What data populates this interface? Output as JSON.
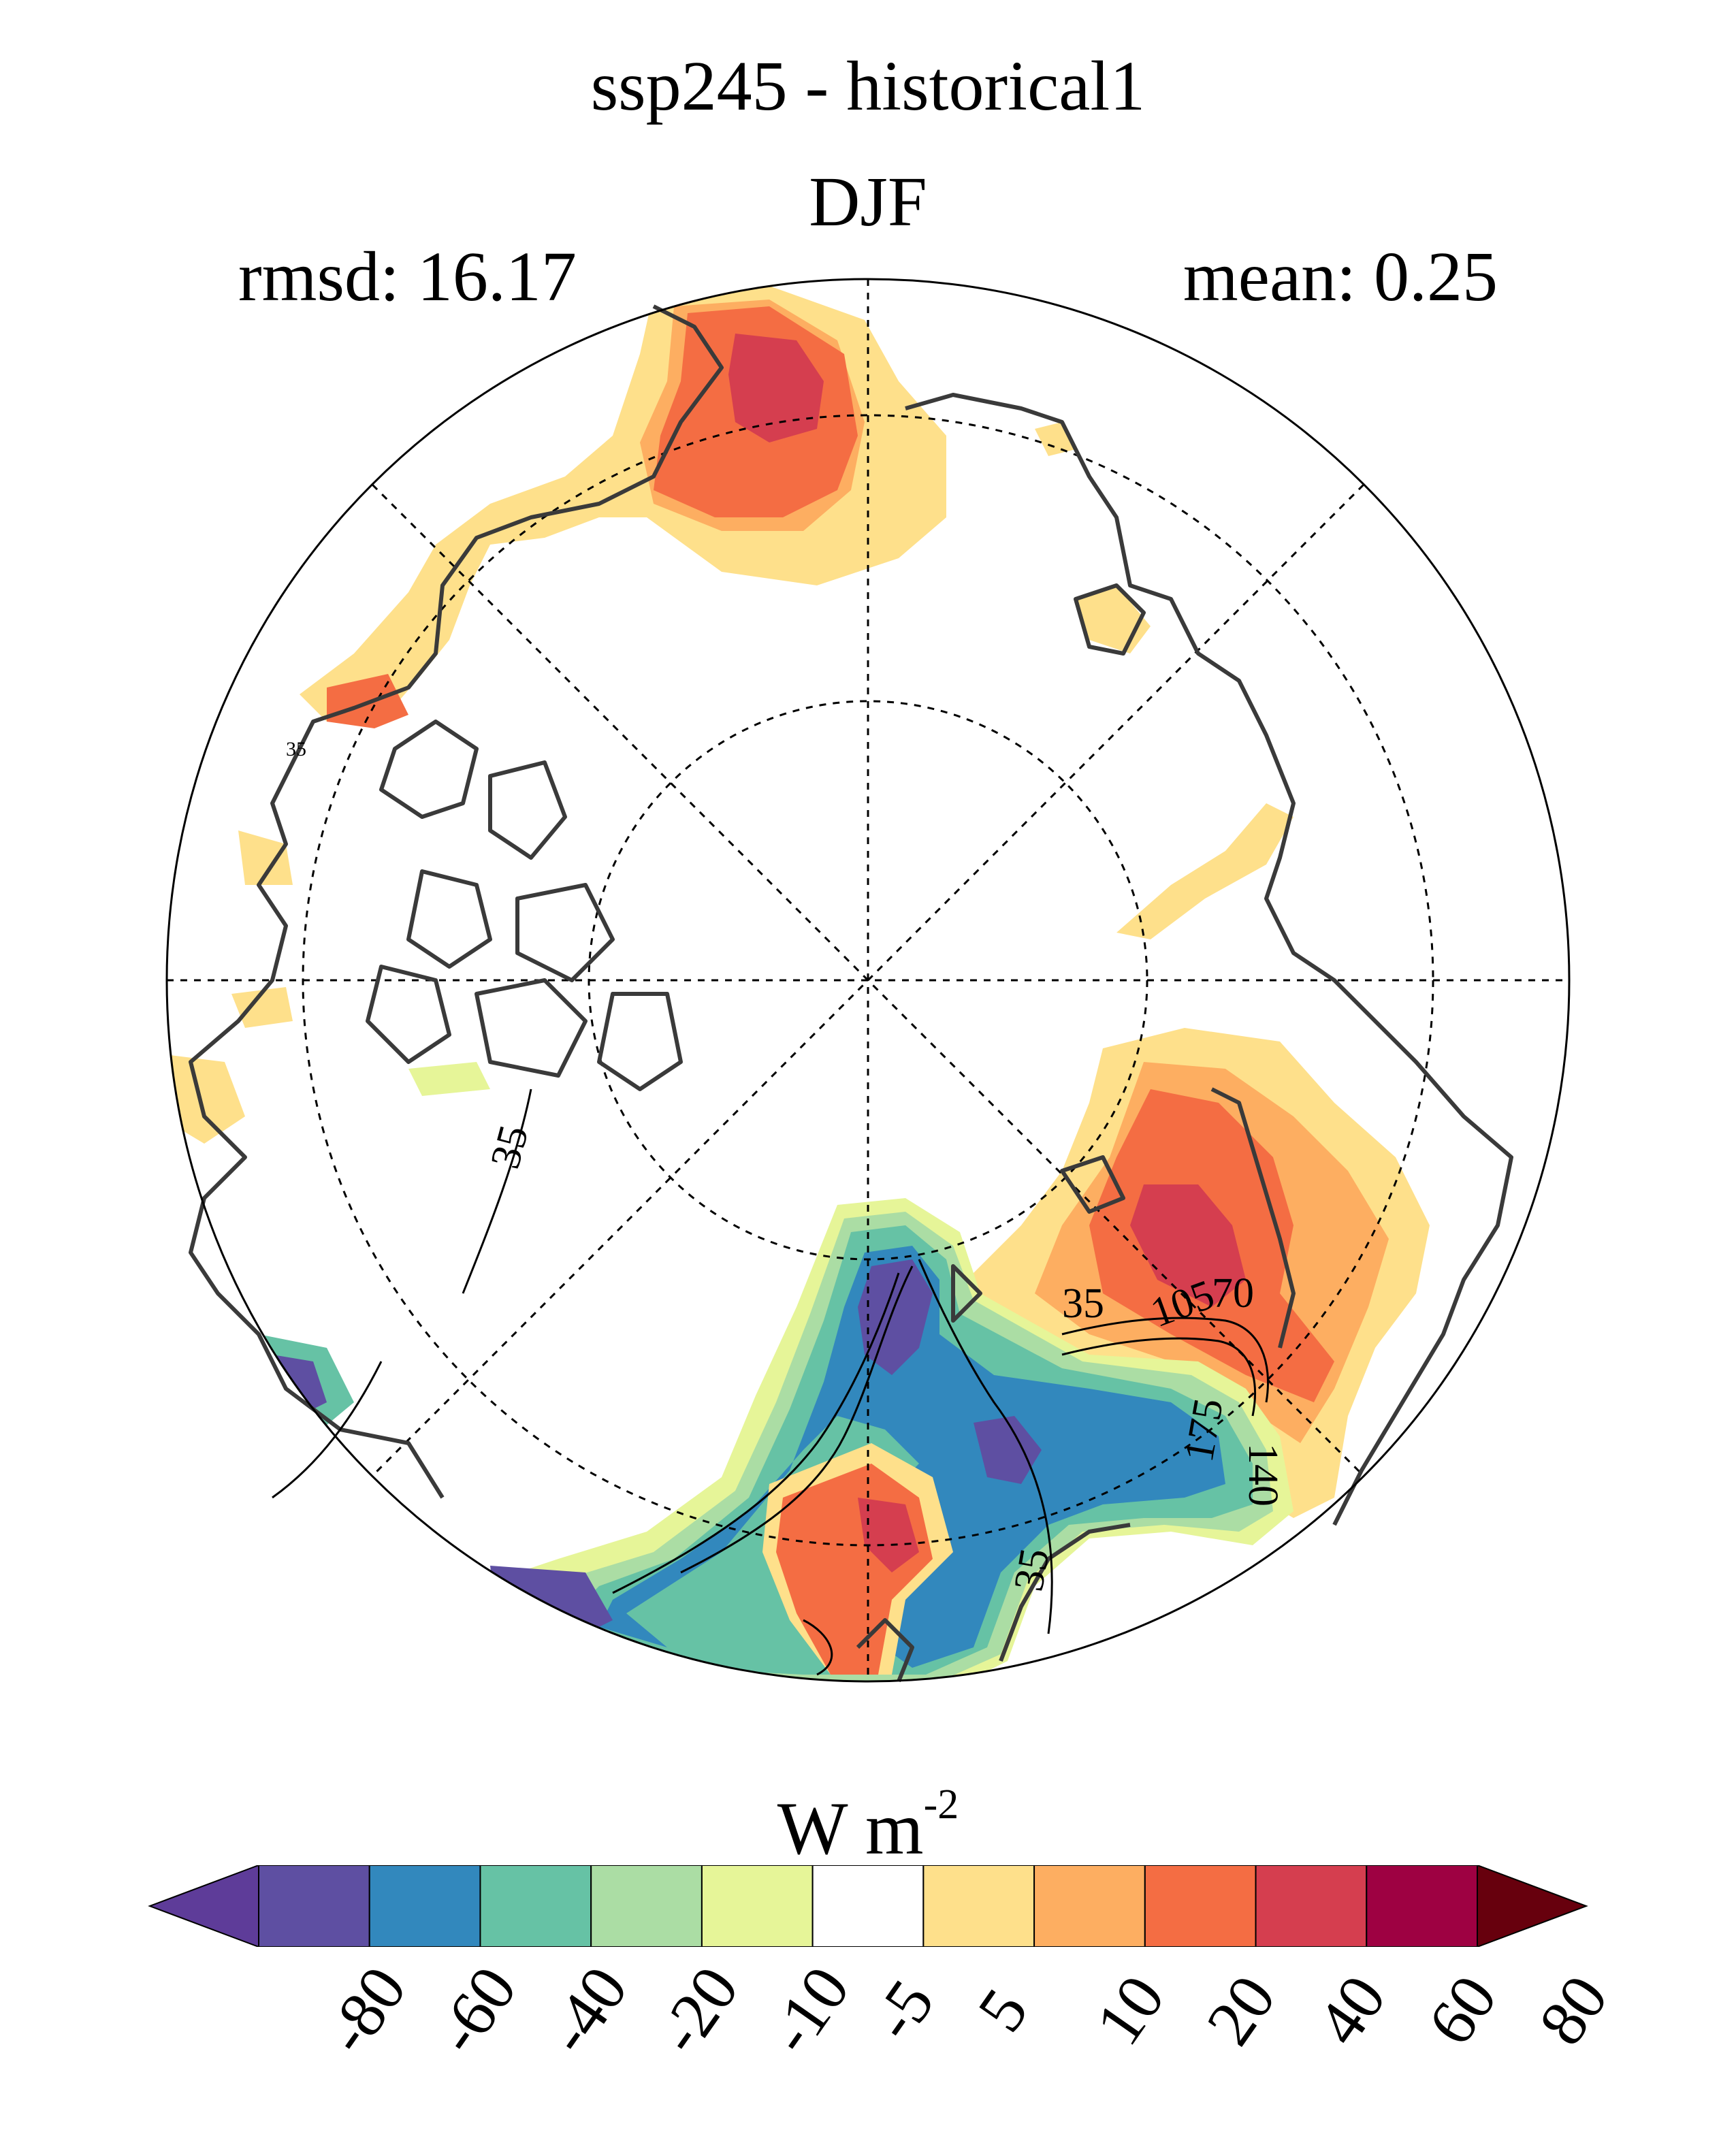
{
  "header": {
    "title": "ssp245 - historical1",
    "season": "DJF",
    "rmsd_label": "rmsd: 16.17",
    "mean_label": "mean: 0.25"
  },
  "map": {
    "projection": "north-polar-stereographic",
    "contour_labels": [
      "35",
      "35",
      "70",
      "105",
      "140",
      "175",
      "35",
      "35"
    ]
  },
  "colorbar": {
    "units_main": "W m",
    "units_exp": "-2",
    "ticks": [
      "-80",
      "-60",
      "-40",
      "-20",
      "-10",
      "-5",
      "5",
      "10",
      "20",
      "40",
      "60",
      "80"
    ],
    "colors": [
      "#5e3c99",
      "#5e4fa2",
      "#3288bd",
      "#66c2a5",
      "#abdda4",
      "#e6f598",
      "#ffffff",
      "#fee08b",
      "#fdae61",
      "#f46d43",
      "#d53e4f",
      "#9e0142",
      "#67000d"
    ]
  }
}
